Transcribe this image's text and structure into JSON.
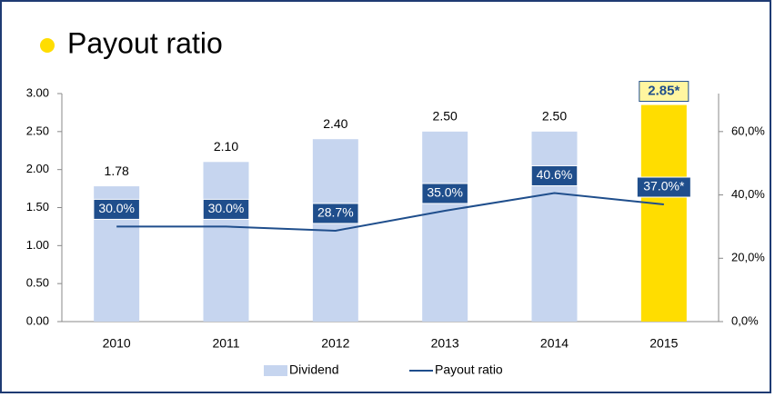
{
  "chart_data": {
    "type": "bar-line",
    "title": "Payout ratio",
    "categories": [
      "2010",
      "2011",
      "2012",
      "2013",
      "2014",
      "2015"
    ],
    "series": [
      {
        "name": "Dividend",
        "type": "bar",
        "color": "#c6d5ef",
        "colors": [
          "#c6d5ef",
          "#c6d5ef",
          "#c6d5ef",
          "#c6d5ef",
          "#c6d5ef",
          "#ffdd00"
        ],
        "values": [
          1.78,
          2.1,
          2.4,
          2.5,
          2.5,
          2.85
        ],
        "value_labels": [
          "1.78",
          "2.10",
          "2.40",
          "2.50",
          "2.50",
          "2.85*"
        ]
      },
      {
        "name": "Payout ratio",
        "type": "line",
        "axis": "y2",
        "color": "#1f4e8c",
        "values": [
          30.0,
          30.0,
          28.7,
          35.0,
          40.6,
          37.0
        ],
        "value_labels": [
          "30.0%",
          "30.0%",
          "28.7%",
          "35.0%",
          "40.6%",
          "37.0%*"
        ]
      }
    ],
    "ylim": [
      0,
      3
    ],
    "yticks": [
      {
        "value": 0,
        "label": "0.00"
      },
      {
        "value": 0.5,
        "label": "0.50"
      },
      {
        "value": 1,
        "label": "1.00"
      },
      {
        "value": 1.5,
        "label": "1.50"
      },
      {
        "value": 2,
        "label": "2.00"
      },
      {
        "value": 2.5,
        "label": "2.50"
      },
      {
        "value": 3,
        "label": "3.00"
      }
    ],
    "y2lim": [
      0,
      72
    ],
    "y2ticks": [
      {
        "value": 0,
        "label": "0,0%"
      },
      {
        "value": 20,
        "label": "20,0%"
      },
      {
        "value": 40,
        "label": "40,0%"
      },
      {
        "value": 60,
        "label": "60,0%"
      }
    ],
    "legend": "bottom"
  }
}
